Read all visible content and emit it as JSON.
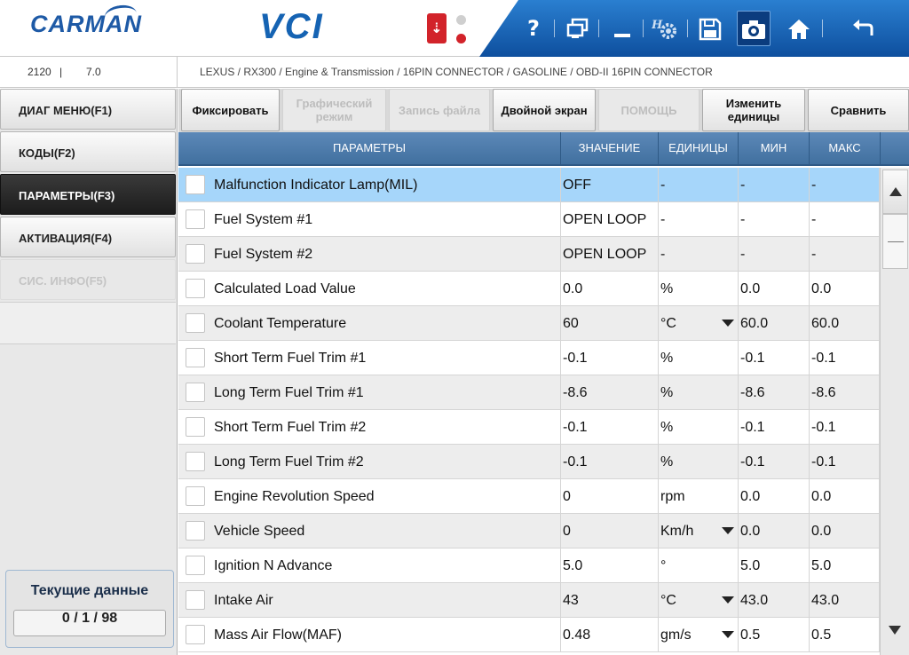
{
  "header": {
    "logo": "CARMAN",
    "product": "VCI",
    "toolbar": {
      "help_icon": "question-icon",
      "window_icon": "window-switch-icon",
      "minimize_icon": "minimize-icon",
      "settings_icon": "settings-icon",
      "save_icon": "save-icon",
      "camera_icon": "camera-icon",
      "home_icon": "home-icon",
      "back_icon": "back-arrow-icon"
    },
    "colors": {
      "toolbar": "#1a64b8",
      "usb": "#d2232a"
    }
  },
  "infobar": {
    "code": "2120",
    "separator": "|",
    "version": "7.0",
    "breadcrumb": "LEXUS / RX300 / Engine & Transmission / 16PIN CONNECTOR / GASOLINE / OBD-II 16PIN CONNECTOR"
  },
  "nav": {
    "items": [
      {
        "label": "ДИАГ МЕНЮ(F1)",
        "state": "normal"
      },
      {
        "label": "КОДЫ(F2)",
        "state": "normal"
      },
      {
        "label": "ПАРАМЕТРЫ(F3)",
        "state": "active"
      },
      {
        "label": "АКТИВАЦИЯ(F4)",
        "state": "normal"
      },
      {
        "label": "СИС. ИНФО(F5)",
        "state": "disabled"
      }
    ],
    "current_title": "Текущие данные",
    "current_count": "0 / 1 / 98"
  },
  "actions": [
    {
      "label": "Фиксировать",
      "enabled": true
    },
    {
      "label": "Графический режим",
      "enabled": false
    },
    {
      "label": "Запись файла",
      "enabled": false
    },
    {
      "label": "Двойной экран",
      "enabled": true
    },
    {
      "label": "ПОМОЩЬ",
      "enabled": false
    },
    {
      "label": "Изменить единицы",
      "enabled": true
    },
    {
      "label": "Сравнить",
      "enabled": true
    }
  ],
  "table": {
    "columns": [
      "ПАРАМЕТРЫ",
      "ЗНАЧЕНИЕ",
      "ЕДИНИЦЫ",
      "МИН",
      "МАКС"
    ],
    "rows": [
      {
        "name": "Malfunction Indicator Lamp(MIL)",
        "value": "OFF",
        "unit": "-",
        "dropdown": false,
        "min": "-",
        "max": "-",
        "selected": true
      },
      {
        "name": "Fuel System #1",
        "value": "OPEN LOOP",
        "unit": "-",
        "dropdown": false,
        "min": "-",
        "max": "-"
      },
      {
        "name": "Fuel System #2",
        "value": "OPEN LOOP",
        "unit": "-",
        "dropdown": false,
        "min": "-",
        "max": "-"
      },
      {
        "name": "Calculated Load Value",
        "value": "0.0",
        "unit": "%",
        "dropdown": false,
        "min": "0.0",
        "max": "0.0"
      },
      {
        "name": "Coolant Temperature",
        "value": "60",
        "unit": "°C",
        "dropdown": true,
        "min": "60.0",
        "max": "60.0"
      },
      {
        "name": "Short Term Fuel Trim #1",
        "value": "-0.1",
        "unit": "%",
        "dropdown": false,
        "min": "-0.1",
        "max": "-0.1"
      },
      {
        "name": "Long Term Fuel Trim #1",
        "value": "-8.6",
        "unit": "%",
        "dropdown": false,
        "min": "-8.6",
        "max": "-8.6"
      },
      {
        "name": "Short Term Fuel Trim #2",
        "value": "-0.1",
        "unit": "%",
        "dropdown": false,
        "min": "-0.1",
        "max": "-0.1"
      },
      {
        "name": "Long Term Fuel Trim #2",
        "value": "-0.1",
        "unit": "%",
        "dropdown": false,
        "min": "-0.1",
        "max": "-0.1"
      },
      {
        "name": "Engine Revolution Speed",
        "value": "0",
        "unit": "rpm",
        "dropdown": false,
        "min": "0.0",
        "max": "0.0"
      },
      {
        "name": "Vehicle Speed",
        "value": "0",
        "unit": "Km/h",
        "dropdown": true,
        "min": "0.0",
        "max": "0.0"
      },
      {
        "name": "Ignition N Advance",
        "value": "5.0",
        "unit": "°",
        "dropdown": false,
        "min": "5.0",
        "max": "5.0"
      },
      {
        "name": "Intake Air",
        "value": "43",
        "unit": "°C",
        "dropdown": true,
        "min": "43.0",
        "max": "43.0"
      },
      {
        "name": "Mass Air Flow(MAF)",
        "value": "0.48",
        "unit": "gm/s",
        "dropdown": true,
        "min": "0.5",
        "max": "0.5"
      }
    ]
  }
}
